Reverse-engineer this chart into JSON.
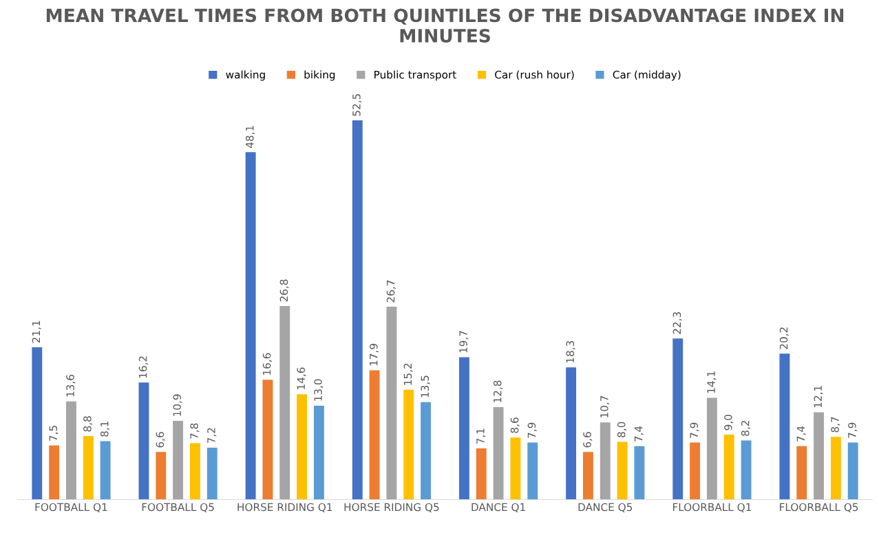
{
  "chart_data": {
    "type": "bar",
    "title": "MEAN TRAVEL TIMES FROM BOTH QUINTILES OF THE DISADVANTAGE INDEX IN MINUTES",
    "categories": [
      "FOOTBALL Q1",
      "FOOTBALL Q5",
      "HORSE RIDING Q1",
      "HORSE RIDING Q5",
      "DANCE Q1",
      "DANCE Q5",
      "FLOORBALL Q1",
      "FLOORBALL Q5"
    ],
    "series": [
      {
        "name": "walking",
        "color": "#4472c4",
        "values": [
          21.1,
          16.2,
          48.1,
          52.5,
          19.7,
          18.3,
          22.3,
          20.2
        ],
        "value_labels": [
          "21,1",
          "16,2",
          "48,1",
          "52,5",
          "19,7",
          "18,3",
          "22,3",
          "20,2"
        ]
      },
      {
        "name": "biking",
        "color": "#ed7d31",
        "values": [
          7.5,
          6.6,
          16.6,
          17.9,
          7.1,
          6.6,
          7.9,
          7.4
        ],
        "value_labels": [
          "7,5",
          "6,6",
          "16,6",
          "17,9",
          "7,1",
          "6,6",
          "7,9",
          "7,4"
        ]
      },
      {
        "name": "Public transport",
        "color": "#a5a5a5",
        "values": [
          13.6,
          10.9,
          26.8,
          26.7,
          12.8,
          10.7,
          14.1,
          12.1
        ],
        "value_labels": [
          "13,6",
          "10,9",
          "26,8",
          "26,7",
          "12,8",
          "10,7",
          "14,1",
          "12,1"
        ]
      },
      {
        "name": "Car (rush hour)",
        "color": "#ffc000",
        "values": [
          8.8,
          7.8,
          14.6,
          15.2,
          8.6,
          8.0,
          9.0,
          8.7
        ],
        "value_labels": [
          "8,8",
          "7,8",
          "14,6",
          "15,2",
          "8,6",
          "8,0",
          "9,0",
          "8,7"
        ]
      },
      {
        "name": "Car (midday)",
        "color": "#5b9bd5",
        "values": [
          8.1,
          7.2,
          13.0,
          13.5,
          7.9,
          7.4,
          8.2,
          7.9
        ],
        "value_labels": [
          "8,1",
          "7,2",
          "13,0",
          "13,5",
          "7,9",
          "7,4",
          "8,2",
          "7,9"
        ]
      }
    ],
    "tick_labels": "x",
    "legend": "top",
    "grid": false
  }
}
